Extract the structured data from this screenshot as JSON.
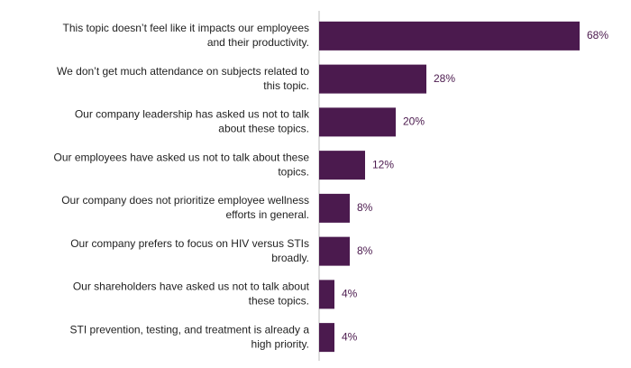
{
  "chart_data": {
    "type": "bar",
    "orientation": "horizontal",
    "categories": [
      [
        "This topic doesn’t feel like it impacts our employees",
        "and their productivity."
      ],
      [
        "We don’t get much attendance on subjects related to",
        "this topic."
      ],
      [
        "Our company leadership has asked us not to talk",
        "about these topics."
      ],
      [
        "Our employees have asked us not to talk about these",
        "topics."
      ],
      [
        "Our company does not prioritize employee wellness",
        "efforts in general."
      ],
      [
        "Our company prefers to focus on HIV versus STIs",
        "broadly."
      ],
      [
        "Our shareholders have asked us not to talk about",
        "these topics."
      ],
      [
        "STI prevention, testing, and treatment is already a",
        "high priority."
      ]
    ],
    "values": [
      68,
      28,
      20,
      12,
      8,
      8,
      4,
      4
    ],
    "value_labels": [
      "68%",
      "28%",
      "20%",
      "12%",
      "8%",
      "8%",
      "4%",
      "4%"
    ],
    "color": "#4b1a4e",
    "xlim": [
      0,
      80
    ]
  }
}
